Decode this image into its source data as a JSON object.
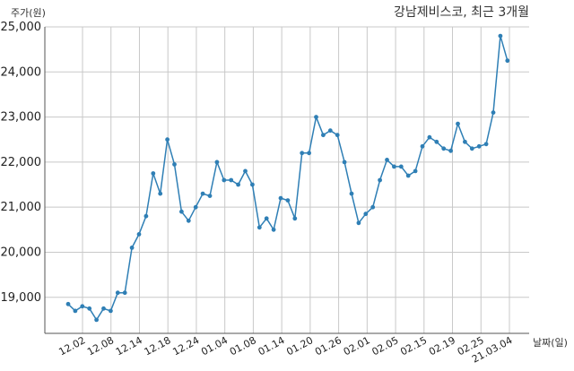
{
  "chart_data": {
    "type": "line",
    "title": "강남제비스코, 최근 3개월",
    "ylabel": "주가(원)",
    "xlabel": "날짜(일)",
    "ylim": [
      18200,
      25000
    ],
    "yticks": [
      19000,
      20000,
      21000,
      22000,
      23000,
      24000,
      25000
    ],
    "ytick_labels": [
      "19,000",
      "20,000",
      "21,000",
      "22,000",
      "23,000",
      "24,000",
      "25,000"
    ],
    "xtick_labels": [
      "12.02",
      "12.08",
      "12.14",
      "12.18",
      "12.24",
      "01.04",
      "01.08",
      "01.14",
      "01.20",
      "01.26",
      "02.01",
      "02.05",
      "02.15",
      "02.19",
      "02.25",
      "21.03.04"
    ],
    "grid": true,
    "color": "#2f7fb5",
    "series": [
      {
        "values": [
          18850,
          18700,
          18800,
          18750,
          18500,
          18750,
          18700,
          19100,
          19100,
          20100,
          20400,
          20800,
          21750,
          21300,
          22500,
          21950,
          20900,
          20700,
          21000,
          21300,
          21250,
          22000,
          21600,
          21600,
          21500,
          21800,
          21500,
          20550,
          20750,
          20500,
          21200,
          21150,
          20750,
          22200,
          22200,
          23000,
          22600,
          22700,
          22600,
          22000,
          21300,
          20650,
          20850,
          21000,
          21600,
          22050,
          21900,
          21900,
          21700,
          21800,
          22350,
          22550,
          22450,
          22300,
          22250,
          22850,
          22450,
          22300,
          22350,
          22400,
          23100,
          24800,
          24250
        ]
      }
    ]
  }
}
